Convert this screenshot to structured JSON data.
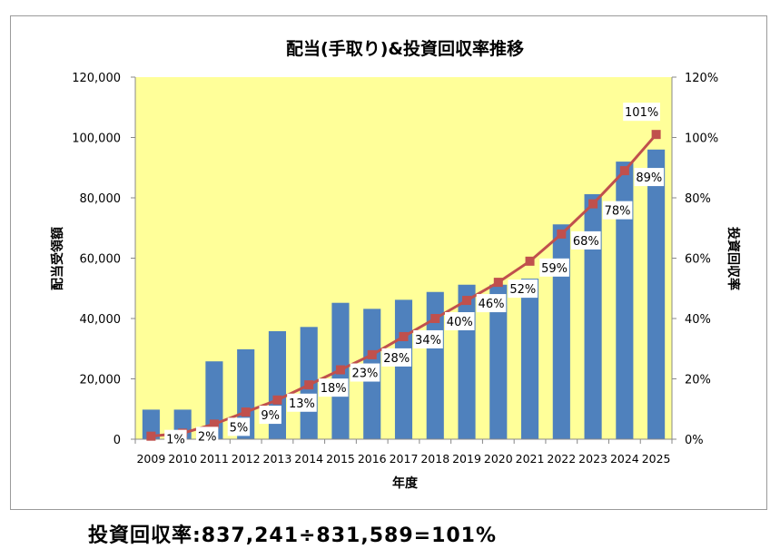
{
  "chart_data": {
    "type": "bar",
    "title": "配当(手取り)&投資回収率推移",
    "xlabel": "年度",
    "ylabel": "配当受領額",
    "y2label": "投資回収率",
    "categories": [
      "2009",
      "2010",
      "2011",
      "2012",
      "2013",
      "2014",
      "2015",
      "2016",
      "2017",
      "2018",
      "2019",
      "2020",
      "2021",
      "2022",
      "2023",
      "2024",
      "2025"
    ],
    "ylim": [
      0,
      120000
    ],
    "yticks": [
      0,
      20000,
      40000,
      60000,
      80000,
      100000,
      120000
    ],
    "ytick_labels": [
      "0",
      "20,000",
      "40,000",
      "60,000",
      "80,000",
      "100,000",
      "120,000"
    ],
    "y2lim": [
      0,
      120
    ],
    "y2ticks": [
      0,
      20,
      40,
      60,
      80,
      100,
      120
    ],
    "y2tick_labels": [
      "0%",
      "20%",
      "40%",
      "60%",
      "80%",
      "100%",
      "120%"
    ],
    "series": [
      {
        "name": "配当受領額",
        "type": "bar",
        "color": "#4f81bd",
        "axis": "left",
        "values": [
          9800,
          9800,
          25800,
          29800,
          35800,
          37200,
          45200,
          43200,
          46200,
          48800,
          51200,
          51200,
          53200,
          71200,
          81200,
          92000,
          96000
        ]
      },
      {
        "name": "投資回収率",
        "type": "line",
        "color": "#c0504d",
        "axis": "right",
        "values": [
          1,
          2,
          5,
          9,
          13,
          18,
          23,
          28,
          34,
          40,
          46,
          52,
          59,
          68,
          78,
          89,
          101
        ],
        "data_labels": [
          "1%",
          "2%",
          "5%",
          "9%",
          "13%",
          "18%",
          "23%",
          "28%",
          "34%",
          "40%",
          "46%",
          "52%",
          "59%",
          "68%",
          "78%",
          "89%",
          "101%"
        ]
      }
    ],
    "plot_background": "#ffff99",
    "grid": false,
    "legend": "none"
  },
  "caption": "投資回収率:837,241÷831,589=101%"
}
